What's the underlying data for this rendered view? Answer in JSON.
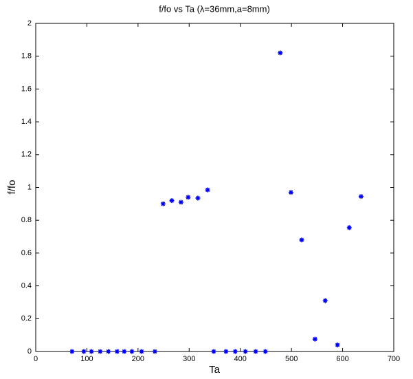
{
  "chart_data": {
    "type": "scatter",
    "title": "f/fo vs Ta (λ=36mm,a=8mm)",
    "x_label": "Ta",
    "y_label": "f/fo",
    "series": [
      {
        "name": "f/fo",
        "color": "#0000ff",
        "marker": "asterisk",
        "x": [
          71,
          94,
          109,
          126,
          142,
          159,
          173,
          188,
          207,
          233,
          249,
          266,
          284,
          298,
          317,
          336,
          348,
          372,
          390,
          410,
          430,
          449,
          478,
          499,
          520,
          546,
          566,
          590,
          613,
          636
        ],
        "values": [
          0,
          0,
          0,
          0,
          0,
          0,
          0,
          0,
          0,
          0,
          0.9,
          0.92,
          0.91,
          0.94,
          0.935,
          0.985,
          0,
          0,
          0,
          0,
          0,
          0,
          1.82,
          0.97,
          0.68,
          0.075,
          0.31,
          0.04,
          0.755,
          0.945
        ]
      }
    ],
    "xlim": [
      0,
      700
    ],
    "xticks": [
      0,
      100,
      200,
      300,
      400,
      500,
      600,
      700
    ],
    "ylim": [
      0,
      2
    ],
    "yticks": [
      0,
      0.2,
      0.4,
      0.6,
      0.8,
      1,
      1.2,
      1.4,
      1.6,
      1.8,
      2
    ],
    "grid": false
  }
}
